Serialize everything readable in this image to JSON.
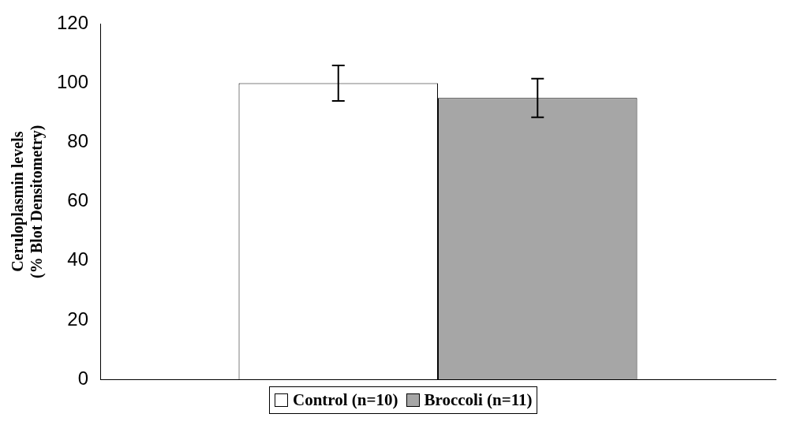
{
  "chart_data": {
    "type": "bar",
    "categories": [
      null
    ],
    "series": [
      {
        "name": "Control (n=10)",
        "color": "#ffffff",
        "values": [
          100
        ],
        "errors": [
          6
        ]
      },
      {
        "name": "Broccoli (n=11)",
        "color": "#a6a6a6",
        "values": [
          95
        ],
        "errors": [
          6.5
        ]
      }
    ],
    "ylabel": "Ceruloplasmin levels\n(% Blot Densitometry)",
    "ylim": [
      0,
      120
    ],
    "yticks": [
      0,
      20,
      40,
      60,
      80,
      100,
      120
    ],
    "grid": false,
    "legend": "bottom"
  }
}
